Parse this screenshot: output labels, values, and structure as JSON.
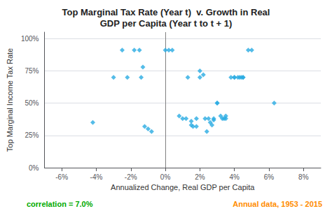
{
  "chart_data": {
    "type": "scatter",
    "title": "Top Marginal Tax Rate (Year t)  v. Growth in Real\nGDP per Capita (Year t to t + 1)",
    "xlabel": "Annualized Change, Real GDP per Capita",
    "ylabel": "Top Marginal Income Tax Rate",
    "annotations": [
      {
        "text": "correlation = 7.0%",
        "color": "#00aa00"
      },
      {
        "text": "Annual data, 1953 - 2015",
        "color": "#ff8c00"
      }
    ],
    "color": "#29ABE2",
    "marker": "diamond",
    "grid": true,
    "reference_line_x": 0,
    "xlim": [
      -0.07,
      0.09
    ],
    "ylim": [
      0.0,
      1.05
    ],
    "xticks": [
      {
        "value": -0.06,
        "label": "-6%"
      },
      {
        "value": -0.04,
        "label": "-4%"
      },
      {
        "value": -0.02,
        "label": "-2%"
      },
      {
        "value": 0.0,
        "label": "0%"
      },
      {
        "value": 0.02,
        "label": "2%"
      },
      {
        "value": 0.04,
        "label": "4%"
      },
      {
        "value": 0.06,
        "label": "6%"
      },
      {
        "value": 0.08,
        "label": "8%"
      }
    ],
    "yticks": [
      {
        "value": 0.0,
        "label": "0%"
      },
      {
        "value": 0.25,
        "label": "25%"
      },
      {
        "value": 0.5,
        "label": "50%"
      },
      {
        "value": 0.75,
        "label": "75%"
      },
      {
        "value": 1.0,
        "label": "100%"
      }
    ],
    "x": [
      -0.042,
      -0.03,
      -0.025,
      -0.022,
      -0.018,
      -0.015,
      -0.014,
      -0.013,
      -0.012,
      -0.01,
      -0.008,
      0.0,
      0.002,
      0.004,
      0.008,
      0.01,
      0.012,
      0.013,
      0.015,
      0.015,
      0.016,
      0.018,
      0.018,
      0.02,
      0.02,
      0.022,
      0.023,
      0.024,
      0.025,
      0.026,
      0.027,
      0.028,
      0.028,
      0.03,
      0.03,
      0.032,
      0.033,
      0.034,
      0.035,
      0.035,
      0.038,
      0.04,
      0.04,
      0.042,
      0.043,
      0.044,
      0.045,
      0.045,
      0.048,
      0.05,
      0.063
    ],
    "values": [
      0.35,
      0.7,
      0.91,
      0.7,
      0.91,
      0.91,
      0.7,
      0.78,
      0.32,
      0.3,
      0.28,
      0.91,
      0.91,
      0.91,
      0.4,
      0.38,
      0.38,
      0.7,
      0.36,
      0.33,
      0.32,
      0.38,
      0.32,
      0.7,
      0.75,
      0.72,
      0.38,
      0.28,
      0.38,
      0.35,
      0.33,
      0.37,
      0.38,
      0.5,
      0.5,
      0.4,
      0.38,
      0.38,
      0.4,
      0.38,
      0.7,
      0.7,
      0.7,
      0.7,
      0.7,
      0.7,
      0.7,
      0.7,
      0.91,
      0.91,
      0.5
    ]
  }
}
